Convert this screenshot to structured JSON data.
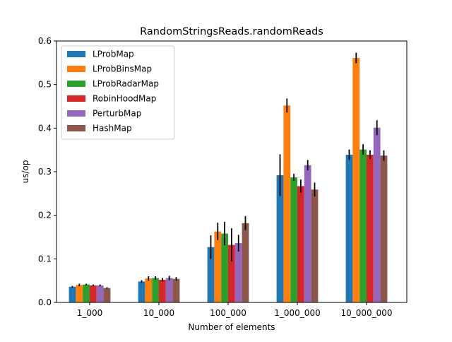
{
  "chart_data": {
    "type": "bar",
    "title": "RandomStringsReads.randomReads",
    "xlabel": "Number of elements",
    "ylabel": "us/op",
    "categories": [
      "1_000",
      "10_000",
      "100_000",
      "1_000_000",
      "10_000_000"
    ],
    "ylim": [
      0,
      0.6
    ],
    "yticks": [
      "0.0",
      "0.1",
      "0.2",
      "0.3",
      "0.4",
      "0.5",
      "0.6"
    ],
    "grid": false,
    "legend_position": "top-left",
    "series": [
      {
        "name": "LProbMap",
        "color": "#1f77b4",
        "values": [
          0.036,
          0.048,
          0.127,
          0.292,
          0.339
        ],
        "err": [
          0.002,
          0.003,
          0.027,
          0.048,
          0.012
        ]
      },
      {
        "name": "LProbBinsMap",
        "color": "#ff7f0e",
        "values": [
          0.04,
          0.055,
          0.163,
          0.452,
          0.561
        ],
        "err": [
          0.003,
          0.005,
          0.02,
          0.016,
          0.012
        ]
      },
      {
        "name": "LProbRadarMap",
        "color": "#2ca02c",
        "values": [
          0.041,
          0.056,
          0.158,
          0.287,
          0.351
        ],
        "err": [
          0.002,
          0.004,
          0.027,
          0.008,
          0.012
        ]
      },
      {
        "name": "RobinHoodMap",
        "color": "#d62728",
        "values": [
          0.039,
          0.052,
          0.132,
          0.267,
          0.339
        ],
        "err": [
          0.002,
          0.004,
          0.038,
          0.015,
          0.01
        ]
      },
      {
        "name": "PerturbMap",
        "color": "#9467bd",
        "values": [
          0.039,
          0.056,
          0.136,
          0.315,
          0.401
        ],
        "err": [
          0.002,
          0.005,
          0.019,
          0.012,
          0.017
        ]
      },
      {
        "name": "HashMap",
        "color": "#8c564b",
        "values": [
          0.033,
          0.054,
          0.182,
          0.259,
          0.337
        ],
        "err": [
          0.002,
          0.004,
          0.016,
          0.016,
          0.012
        ]
      }
    ]
  }
}
